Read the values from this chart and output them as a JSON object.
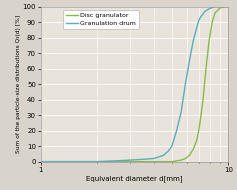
{
  "title": "",
  "xlabel": "Equivalent diameter d[mm]",
  "ylabel": "Sum of the particle-size distributions Q₃(d) [%]",
  "xlim": [
    1,
    10
  ],
  "ylim": [
    0,
    100
  ],
  "legend": [
    "Disc granulator",
    "Granulation drum"
  ],
  "line_colors": [
    "#8db84a",
    "#5aacbe"
  ],
  "background_color": "#d8d4cc",
  "plot_bg_color": "#e8e4dc",
  "grid_color": "#ffffff",
  "disc_granulator_x": [
    1.0,
    1.2,
    1.5,
    2.0,
    2.5,
    3.0,
    3.5,
    4.0,
    4.5,
    5.0,
    5.3,
    5.6,
    5.9,
    6.2,
    6.5,
    6.8,
    7.0,
    7.3,
    7.6,
    7.9,
    8.2,
    8.5,
    9.0,
    9.5,
    10.0
  ],
  "disc_granulator_y": [
    0,
    0,
    0,
    0,
    0,
    0,
    0,
    0,
    0,
    0,
    0.5,
    1.0,
    2.0,
    4.0,
    8.0,
    14.0,
    22.0,
    38.0,
    60.0,
    78.0,
    90.0,
    96.0,
    99.0,
    100.0,
    100.0
  ],
  "granulation_drum_x": [
    1.0,
    1.5,
    2.0,
    2.5,
    3.0,
    3.5,
    4.0,
    4.5,
    4.8,
    5.0,
    5.3,
    5.6,
    5.9,
    6.2,
    6.5,
    6.8,
    7.0,
    7.5,
    8.0,
    8.5,
    9.0,
    9.5,
    10.0
  ],
  "granulation_drum_y": [
    0,
    0,
    0,
    0.5,
    1.0,
    1.5,
    2.0,
    4.0,
    7.0,
    10.0,
    20.0,
    32.0,
    50.0,
    65.0,
    78.0,
    87.0,
    92.0,
    97.0,
    99.0,
    100.0,
    100.0,
    100.0,
    100.0
  ],
  "yticks": [
    0,
    10,
    20,
    30,
    40,
    50,
    60,
    70,
    80,
    90,
    100
  ],
  "xticks": [
    1,
    10
  ]
}
